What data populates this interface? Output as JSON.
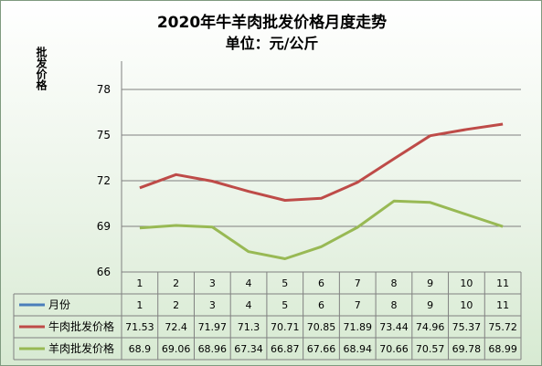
{
  "chart_data": {
    "type": "line",
    "title": "2020年牛羊肉批发价格月度走势",
    "subtitle": "单位：元/公斤",
    "ylabel": "批发价格",
    "xlabel": "",
    "categories": [
      "1",
      "2",
      "3",
      "4",
      "5",
      "6",
      "7",
      "8",
      "9",
      "10",
      "11"
    ],
    "yticks": [
      "66",
      "69",
      "72",
      "75",
      "78"
    ],
    "ylim": [
      66,
      78
    ],
    "grid": true,
    "legend": "data-table",
    "table_rows": [
      {
        "name": "月份",
        "color": "#4a7ebb",
        "values": [
          "1",
          "2",
          "3",
          "4",
          "5",
          "6",
          "7",
          "8",
          "9",
          "10",
          "11"
        ]
      },
      {
        "name": "牛肉批发价格",
        "color": "#be4b48",
        "values": [
          "71.53",
          "72.4",
          "71.97",
          "71.3",
          "70.71",
          "70.85",
          "71.89",
          "73.44",
          "74.96",
          "75.37",
          "75.72"
        ]
      },
      {
        "name": "羊肉批发价格",
        "color": "#98b954",
        "values": [
          "68.9",
          "69.06",
          "68.96",
          "67.34",
          "66.87",
          "67.66",
          "68.94",
          "70.66",
          "70.57",
          "69.78",
          "68.99"
        ]
      }
    ],
    "series": [
      {
        "name": "牛肉批发价格",
        "color": "#be4b48",
        "values": [
          71.53,
          72.4,
          71.97,
          71.3,
          70.71,
          70.85,
          71.89,
          73.44,
          74.96,
          75.37,
          75.72
        ]
      },
      {
        "name": "羊肉批发价格",
        "color": "#98b954",
        "values": [
          68.9,
          69.06,
          68.96,
          67.34,
          66.87,
          67.66,
          68.94,
          70.66,
          70.57,
          69.78,
          68.99
        ]
      }
    ]
  }
}
